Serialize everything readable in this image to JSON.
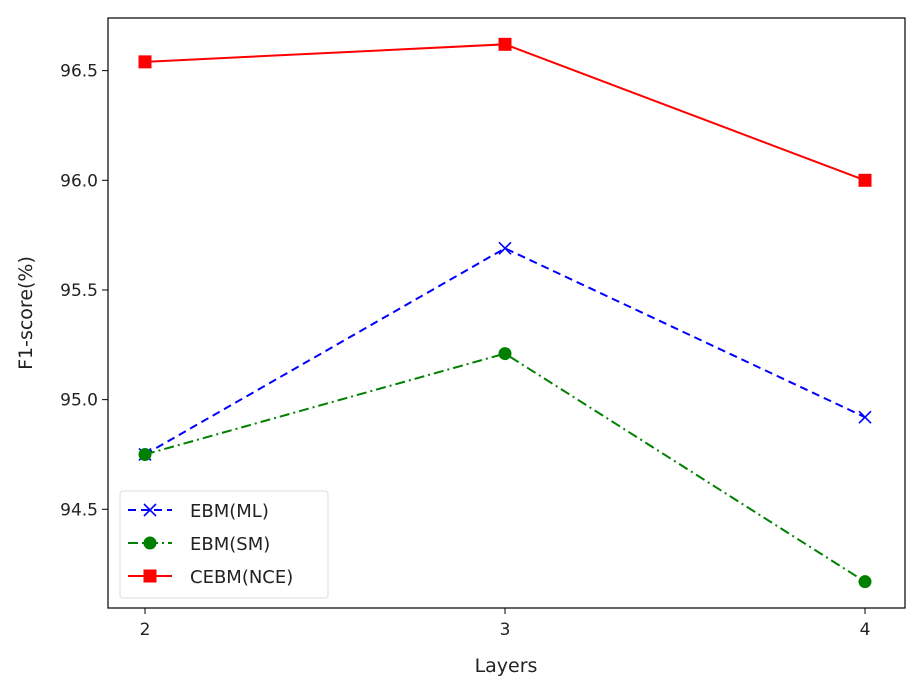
{
  "chart_data": {
    "type": "line",
    "title": "",
    "xlabel": "Layers",
    "ylabel": "F1-score(%)",
    "x": [
      2,
      3,
      4
    ],
    "xticks": [
      "2",
      "3",
      "4"
    ],
    "yticks": [
      "94.5",
      "95.0",
      "95.5",
      "96.0",
      "96.5"
    ],
    "ylim": [
      94.05,
      96.74
    ],
    "grid": false,
    "legend_position": "lower-left",
    "series": [
      {
        "name": "EBM(ML)",
        "values": [
          94.75,
          95.69,
          94.92
        ],
        "color": "#0000ff",
        "dash": "dashed",
        "marker": "x"
      },
      {
        "name": "EBM(SM)",
        "values": [
          94.75,
          95.21,
          94.17
        ],
        "color": "#008000",
        "dash": "dashdot",
        "marker": "circle"
      },
      {
        "name": "CEBM(NCE)",
        "values": [
          96.54,
          96.62,
          96.0
        ],
        "color": "#ff0000",
        "dash": "solid",
        "marker": "square"
      }
    ]
  }
}
